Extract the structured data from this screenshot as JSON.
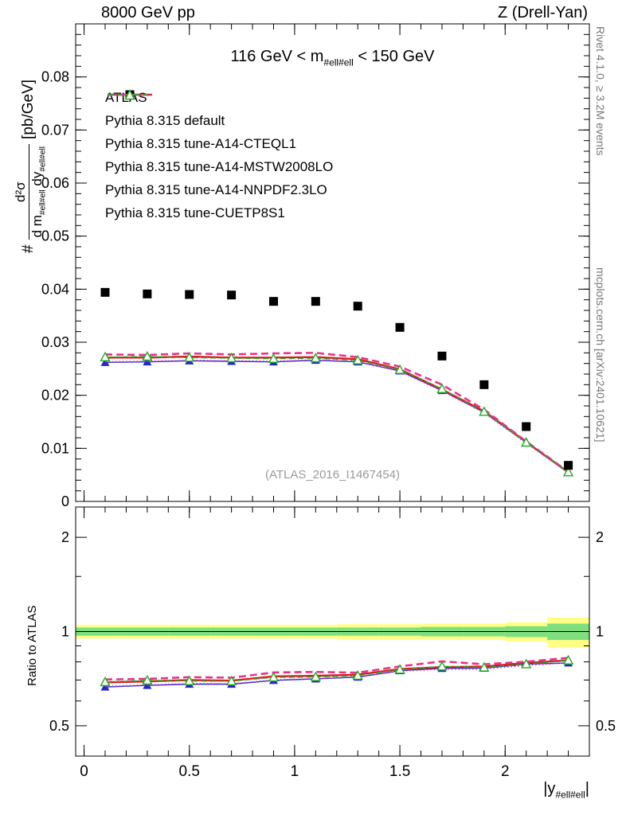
{
  "header": {
    "left_title": "8000 GeV pp",
    "right_title": "Z (Drell-Yan)"
  },
  "title": {
    "pre": "116 GeV < m",
    "sub": "#ell#ell",
    "post": " < 150 GeV"
  },
  "ylabel_main": {
    "prefix": "#",
    "numerator": "d²σ",
    "den_pre": "d m",
    "den_sub": "#ell#ell",
    "den_mid": " dy",
    "den_sub2": "#ell#ell",
    "units": "[pb/GeV]"
  },
  "ylabel_ratio": "Ratio to ATLAS",
  "xlabel": {
    "pre": "|y",
    "sub": "#ell#ell",
    "post": "|"
  },
  "watermark": "(ATLAS_2016_I1467454)",
  "side_notes": {
    "top_right": "Rivet 4.1.0, ≥ 3.2M events",
    "bottom_right": "mcplots.cern.ch [arXiv:2401.10621]"
  },
  "legend": {
    "items": [
      {
        "label": "ATLAS",
        "series": "atlas"
      },
      {
        "label": "Pythia 8.315 default",
        "series": "default"
      },
      {
        "label": "Pythia 8.315 tune-A14-CTEQL1",
        "series": "cteql1"
      },
      {
        "label": "Pythia 8.315 tune-A14-MSTW2008LO",
        "series": "mstw"
      },
      {
        "label": "Pythia 8.315 tune-A14-NNPDF2.3LO",
        "series": "nnpdf"
      },
      {
        "label": "Pythia 8.315 tune-CUETP8S1",
        "series": "cuetp8s1"
      }
    ]
  },
  "colors": {
    "band_yellow": "#ffff85",
    "band_green": "#7fdf7f",
    "frame": "#000000"
  },
  "chart_data": {
    "type": "line",
    "title": "116 GeV < m_ll < 150 GeV",
    "xlabel": "|y_ll|",
    "x": [
      0.1,
      0.3,
      0.5,
      0.7,
      0.9,
      1.1,
      1.3,
      1.5,
      1.7,
      1.9,
      2.1,
      2.3
    ],
    "xlim": [
      -0.04,
      2.4
    ],
    "xticks": [
      0,
      0.5,
      1,
      1.5,
      2
    ],
    "xtick_labels": [
      "0",
      "0.5",
      "1",
      "1.5",
      "2"
    ],
    "xminor_step": 0.1,
    "main_panel": {
      "ylabel": "# d²σ/(d m_ll dy_ll) [pb/GeV]",
      "ylim": [
        0,
        0.09
      ],
      "yticks": [
        0,
        0.01,
        0.02,
        0.03,
        0.04,
        0.05,
        0.06,
        0.07,
        0.08
      ],
      "ytick_labels": [
        "0",
        "0.01",
        "0.02",
        "0.03",
        "0.04",
        "0.05",
        "0.06",
        "0.07",
        "0.08"
      ],
      "yminor_step": 0.002,
      "series": [
        {
          "id": "default",
          "name": "Pythia 8.315 default",
          "color": "#2727c8",
          "line": "solid",
          "width": 1.4,
          "marker": "triangle",
          "values": [
            0.0262,
            0.0263,
            0.0265,
            0.0264,
            0.0263,
            0.0266,
            0.0263,
            0.0246,
            0.0209,
            0.0168,
            0.0111,
            0.0054
          ]
        },
        {
          "id": "cteql1",
          "name": "Pythia 8.315 tune-A14-CTEQL1",
          "color": "#e01a1a",
          "line": "solid",
          "width": 2.4,
          "marker": null,
          "values": [
            0.0271,
            0.0271,
            0.0273,
            0.0271,
            0.0271,
            0.0272,
            0.0268,
            0.0249,
            0.0211,
            0.017,
            0.0112,
            0.0055
          ]
        },
        {
          "id": "mstw",
          "name": "Pythia 8.315 tune-A14-MSTW2008LO",
          "color": "#e8328c",
          "line": "dashed",
          "width": 2.6,
          "marker": null,
          "values": [
            0.0277,
            0.0276,
            0.0279,
            0.0277,
            0.0279,
            0.028,
            0.0272,
            0.0254,
            0.022,
            0.0173,
            0.0113,
            0.0056
          ]
        },
        {
          "id": "nnpdf",
          "name": "Pythia 8.315 tune-A14-NNPDF2.3LO",
          "color": "#cb3cc3",
          "line": "dotted",
          "width": 1.7,
          "marker": null,
          "values": [
            0.0263,
            0.0264,
            0.0266,
            0.0265,
            0.0264,
            0.0267,
            0.0264,
            0.0245,
            0.0208,
            0.0167,
            0.011,
            0.0054
          ]
        },
        {
          "id": "cuetp8s1",
          "name": "Pythia 8.315 tune-CUETP8S1",
          "color": "#22aa22",
          "line": "dashed-fine",
          "width": 1.4,
          "marker": "triangle-open",
          "values": [
            0.0272,
            0.0273,
            0.0271,
            0.027,
            0.0269,
            0.027,
            0.0266,
            0.0248,
            0.0212,
            0.0169,
            0.0111,
            0.0055
          ]
        },
        {
          "id": "atlas",
          "name": "ATLAS",
          "color": "#000000",
          "line": "none",
          "width": 0,
          "marker": "square",
          "values": [
            0.0394,
            0.0391,
            0.039,
            0.0389,
            0.0377,
            0.0377,
            0.0368,
            0.0328,
            0.0274,
            0.022,
            0.0141,
            0.0068
          ],
          "yerr": [
            0.0005,
            0.0005,
            0.0005,
            0.0005,
            0.0005,
            0.0005,
            0.0005,
            0.0005,
            0.0004,
            0.0004,
            0.0003,
            0.0002
          ]
        }
      ]
    },
    "ratio_panel": {
      "ylabel": "Ratio to ATLAS",
      "yscale": "log",
      "ylim": [
        0.4,
        2.5
      ],
      "yticks": [
        0.5,
        1,
        2
      ],
      "ytick_labels": [
        "0.5",
        "1",
        "2"
      ],
      "yminor_ticks": [
        0.6,
        0.7,
        0.8,
        0.9,
        1.5
      ],
      "reference": 1,
      "band_bin_edges": [
        0,
        0.2,
        0.4,
        0.6,
        0.8,
        1.0,
        1.2,
        1.4,
        1.6,
        1.8,
        2.0,
        2.2,
        2.4
      ],
      "yellow_band": [
        [
          0.95,
          1.05
        ],
        [
          0.95,
          1.05
        ],
        [
          0.95,
          1.05
        ],
        [
          0.95,
          1.05
        ],
        [
          0.95,
          1.05
        ],
        [
          0.95,
          1.05
        ],
        [
          0.945,
          1.055
        ],
        [
          0.945,
          1.055
        ],
        [
          0.94,
          1.06
        ],
        [
          0.94,
          1.06
        ],
        [
          0.93,
          1.07
        ],
        [
          0.89,
          1.11
        ]
      ],
      "green_band": [
        [
          0.97,
          1.03
        ],
        [
          0.97,
          1.03
        ],
        [
          0.97,
          1.03
        ],
        [
          0.97,
          1.03
        ],
        [
          0.97,
          1.03
        ],
        [
          0.97,
          1.03
        ],
        [
          0.97,
          1.03
        ],
        [
          0.97,
          1.03
        ],
        [
          0.965,
          1.035
        ],
        [
          0.965,
          1.035
        ],
        [
          0.96,
          1.04
        ],
        [
          0.94,
          1.06
        ]
      ],
      "series": [
        {
          "id": "default",
          "values": [
            0.665,
            0.673,
            0.679,
            0.679,
            0.698,
            0.706,
            0.715,
            0.75,
            0.763,
            0.764,
            0.787,
            0.794
          ]
        },
        {
          "id": "cteql1",
          "values": [
            0.688,
            0.693,
            0.7,
            0.697,
            0.719,
            0.722,
            0.728,
            0.759,
            0.77,
            0.773,
            0.794,
            0.809
          ]
        },
        {
          "id": "mstw",
          "values": [
            0.703,
            0.706,
            0.715,
            0.712,
            0.74,
            0.743,
            0.739,
            0.774,
            0.803,
            0.786,
            0.801,
            0.824
          ]
        },
        {
          "id": "nnpdf",
          "values": [
            0.668,
            0.675,
            0.682,
            0.681,
            0.7,
            0.708,
            0.717,
            0.747,
            0.759,
            0.759,
            0.78,
            0.794
          ]
        },
        {
          "id": "cuetp8s1",
          "values": [
            0.69,
            0.698,
            0.695,
            0.694,
            0.714,
            0.716,
            0.723,
            0.756,
            0.774,
            0.768,
            0.787,
            0.809
          ]
        }
      ]
    }
  }
}
